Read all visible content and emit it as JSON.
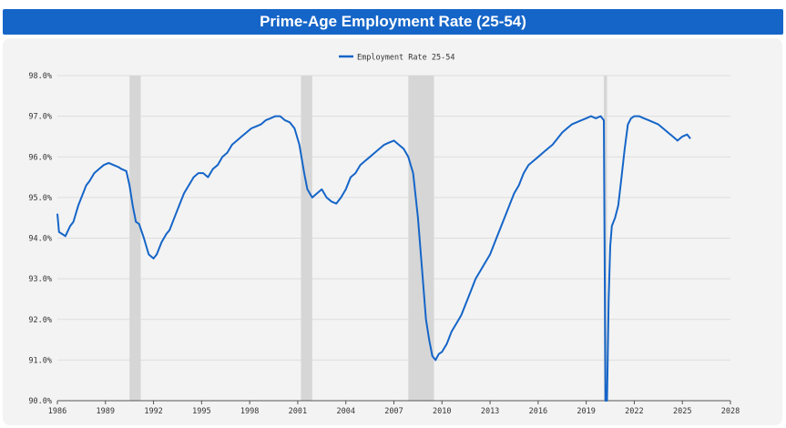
{
  "title": "Prime-Age Employment Rate (25-54)",
  "colors": {
    "title_bar": "#1565c8",
    "line": "#1565c8",
    "recession": "#d6d6d6",
    "panel": "#f3f3f3",
    "grid": "#dddddd"
  },
  "chart_data": {
    "type": "line",
    "title": "Prime-Age Employment Rate (25-54)",
    "xlabel": "",
    "ylabel": "",
    "legend": {
      "position": "top-center",
      "entries": [
        "Employment Rate 25-54"
      ]
    },
    "grid": true,
    "xlim": [
      1986,
      2028
    ],
    "ylim": [
      90.0,
      98.0
    ],
    "x_ticks": [
      "1986",
      "1989",
      "1992",
      "1995",
      "1998",
      "2001",
      "2004",
      "2007",
      "2010",
      "2013",
      "2016",
      "2019",
      "2022",
      "2025",
      "2028"
    ],
    "y_ticks": [
      "90.0%",
      "91.0%",
      "92.0%",
      "93.0%",
      "94.0%",
      "95.0%",
      "96.0%",
      "97.0%",
      "98.0%"
    ],
    "recession_bands": [
      {
        "start": 1990.5,
        "end": 1991.2
      },
      {
        "start": 2001.2,
        "end": 2001.9
      },
      {
        "start": 2007.9,
        "end": 2009.5
      },
      {
        "start": 2020.1,
        "end": 2020.3
      }
    ],
    "series": [
      {
        "name": "Employment Rate 25-54",
        "x": [
          1986.0,
          1986.1,
          1986.3,
          1986.5,
          1986.8,
          1987.0,
          1987.3,
          1987.5,
          1987.8,
          1988.0,
          1988.3,
          1988.6,
          1988.9,
          1989.2,
          1989.5,
          1989.8,
          1990.0,
          1990.3,
          1990.5,
          1990.7,
          1990.9,
          1991.1,
          1991.4,
          1991.7,
          1992.0,
          1992.2,
          1992.5,
          1992.8,
          1993.0,
          1993.3,
          1993.6,
          1993.9,
          1994.2,
          1994.5,
          1994.8,
          1995.1,
          1995.4,
          1995.7,
          1996.0,
          1996.3,
          1996.6,
          1996.9,
          1997.2,
          1997.5,
          1997.8,
          1998.1,
          1998.4,
          1998.7,
          1999.0,
          1999.3,
          1999.6,
          1999.9,
          2000.2,
          2000.5,
          2000.8,
          2001.1,
          2001.4,
          2001.6,
          2001.9,
          2002.2,
          2002.5,
          2002.8,
          2003.1,
          2003.4,
          2003.7,
          2004.0,
          2004.3,
          2004.6,
          2004.9,
          2005.2,
          2005.5,
          2005.8,
          2006.1,
          2006.4,
          2006.7,
          2007.0,
          2007.3,
          2007.6,
          2007.9,
          2008.2,
          2008.5,
          2008.8,
          2009.0,
          2009.2,
          2009.4,
          2009.6,
          2009.8,
          2010.0,
          2010.3,
          2010.6,
          2010.9,
          2011.2,
          2011.5,
          2011.8,
          2012.1,
          2012.4,
          2012.7,
          2013.0,
          2013.3,
          2013.6,
          2013.9,
          2014.2,
          2014.5,
          2014.8,
          2015.1,
          2015.4,
          2015.7,
          2016.0,
          2016.3,
          2016.6,
          2016.9,
          2017.2,
          2017.5,
          2017.8,
          2018.1,
          2018.4,
          2018.7,
          2019.0,
          2019.3,
          2019.6,
          2019.9,
          2020.1,
          2020.2,
          2020.3,
          2020.4,
          2020.5,
          2020.6,
          2020.8,
          2021.0,
          2021.2,
          2021.4,
          2021.6,
          2021.8,
          2022.0,
          2022.3,
          2022.6,
          2022.9,
          2023.2,
          2023.5,
          2023.8,
          2024.1,
          2024.4,
          2024.7,
          2025.0,
          2025.3,
          2025.5
        ],
        "values": [
          94.6,
          94.15,
          94.1,
          94.05,
          94.3,
          94.4,
          94.8,
          95.0,
          95.3,
          95.4,
          95.6,
          95.7,
          95.8,
          95.85,
          95.8,
          95.75,
          95.7,
          95.65,
          95.3,
          94.8,
          94.4,
          94.35,
          94.0,
          93.6,
          93.5,
          93.6,
          93.9,
          94.1,
          94.2,
          94.5,
          94.8,
          95.1,
          95.3,
          95.5,
          95.6,
          95.6,
          95.5,
          95.7,
          95.8,
          96.0,
          96.1,
          96.3,
          96.4,
          96.5,
          96.6,
          96.7,
          96.75,
          96.8,
          96.9,
          96.95,
          97.0,
          97.0,
          96.9,
          96.85,
          96.7,
          96.3,
          95.6,
          95.2,
          95.0,
          95.1,
          95.2,
          95.0,
          94.9,
          94.85,
          95.0,
          95.2,
          95.5,
          95.6,
          95.8,
          95.9,
          96.0,
          96.1,
          96.2,
          96.3,
          96.35,
          96.4,
          96.3,
          96.2,
          96.0,
          95.6,
          94.5,
          93.0,
          92.0,
          91.5,
          91.1,
          91.0,
          91.15,
          91.2,
          91.4,
          91.7,
          91.9,
          92.1,
          92.4,
          92.7,
          93.0,
          93.2,
          93.4,
          93.6,
          93.9,
          94.2,
          94.5,
          94.8,
          95.1,
          95.3,
          95.6,
          95.8,
          95.9,
          96.0,
          96.1,
          96.2,
          96.3,
          96.45,
          96.6,
          96.7,
          96.8,
          96.85,
          96.9,
          96.95,
          97.0,
          96.95,
          97.0,
          96.9,
          90.0,
          90.0,
          92.5,
          93.8,
          94.3,
          94.5,
          94.8,
          95.5,
          96.2,
          96.8,
          96.95,
          97.0,
          97.0,
          96.95,
          96.9,
          96.85,
          96.8,
          96.7,
          96.6,
          96.5,
          96.4,
          96.5,
          96.55,
          96.45
        ]
      }
    ]
  }
}
